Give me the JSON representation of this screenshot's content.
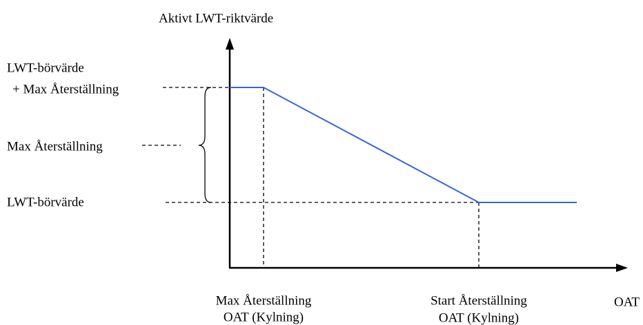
{
  "diagram": {
    "y_axis_label": "Aktivt LWT-riktvärde",
    "x_axis_label": "OAT",
    "upper_level": [
      "LWT-börvärde",
      "+ Max Återställning"
    ],
    "range_label": "Max Återställning",
    "lower_level": "LWT-börvärde",
    "x_points": [
      [
        "Max Återställning",
        "OAT (Kylning)"
      ],
      [
        "Start Återställning",
        "OAT (Kylning)"
      ]
    ]
  }
}
